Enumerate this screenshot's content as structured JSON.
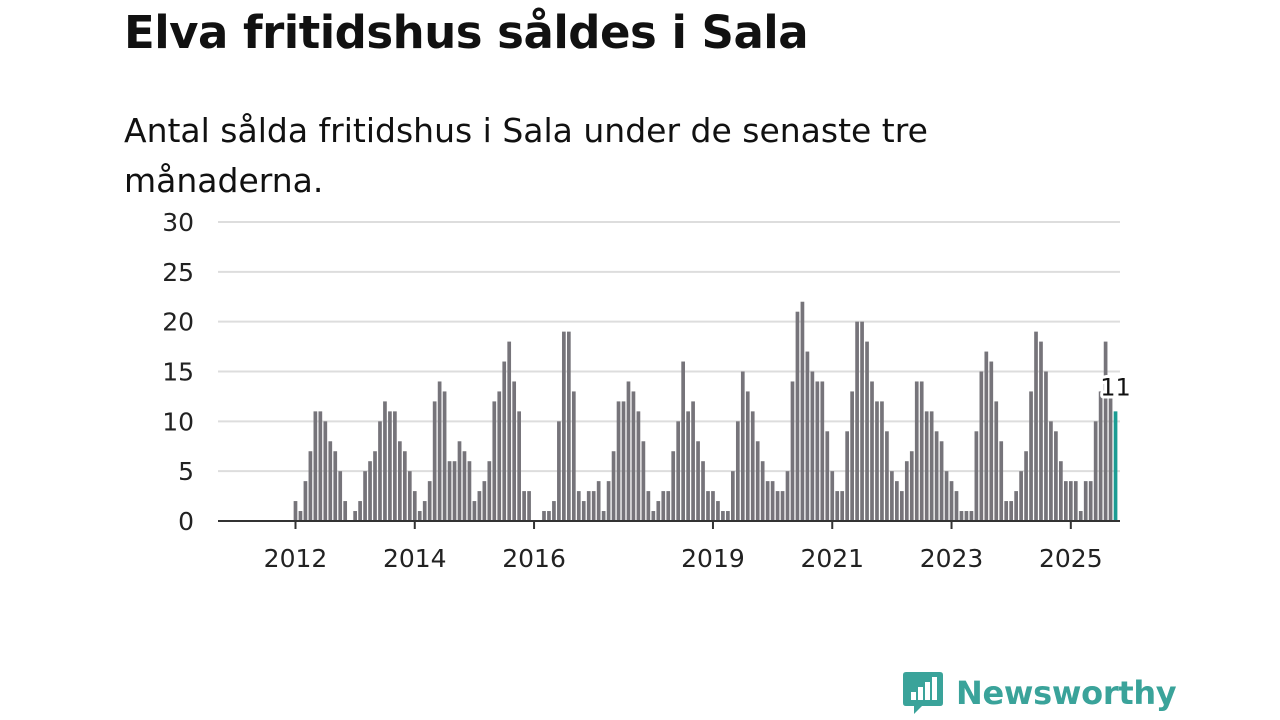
{
  "title": "Elva fritidshus såldes i Sala",
  "subtitle": "Antal sålda fritidshus i Sala under de senaste tre månaderna.",
  "brand": {
    "name": "Newsworthy",
    "icon": "newsworthy-logo-icon"
  },
  "colors": {
    "bar": "#76747a",
    "highlight": "#1b9c93",
    "grid": "#dddddd",
    "axis": "#333333"
  },
  "chart_data": {
    "type": "bar",
    "title": "Elva fritidshus såldes i Sala",
    "subtitle": "Antal sålda fritidshus i Sala under de senaste tre månaderna.",
    "xlabel": "",
    "ylabel": "",
    "ylim": [
      0,
      30
    ],
    "yticks": [
      "0",
      "5",
      "10",
      "15",
      "20",
      "25",
      "30"
    ],
    "grid": true,
    "legend": "none",
    "start": "2011-01",
    "frequency": "monthly",
    "xticks": [
      {
        "month": "2012-01",
        "label": "2012"
      },
      {
        "month": "2014-01",
        "label": "2014"
      },
      {
        "month": "2016-01",
        "label": "2016"
      },
      {
        "month": "2019-01",
        "label": "2019"
      },
      {
        "month": "2021-01",
        "label": "2021"
      },
      {
        "month": "2023-01",
        "label": "2023"
      },
      {
        "month": "2025-01",
        "label": "2025"
      }
    ],
    "values": [
      0,
      0,
      0,
      0,
      0,
      0,
      0,
      0,
      0,
      0,
      0,
      0,
      2,
      1,
      4,
      7,
      11,
      11,
      10,
      8,
      7,
      5,
      2,
      0,
      1,
      2,
      5,
      6,
      7,
      10,
      12,
      11,
      11,
      8,
      7,
      5,
      3,
      1,
      2,
      4,
      12,
      14,
      13,
      6,
      6,
      8,
      7,
      6,
      2,
      3,
      4,
      6,
      12,
      13,
      16,
      18,
      14,
      11,
      3,
      3,
      0,
      0,
      1,
      1,
      2,
      10,
      19,
      19,
      13,
      3,
      2,
      3,
      3,
      4,
      1,
      4,
      7,
      12,
      12,
      14,
      13,
      11,
      8,
      3,
      1,
      2,
      3,
      3,
      7,
      10,
      16,
      11,
      12,
      8,
      6,
      3,
      3,
      2,
      1,
      1,
      5,
      10,
      15,
      13,
      11,
      8,
      6,
      4,
      4,
      3,
      3,
      5,
      14,
      21,
      22,
      17,
      15,
      14,
      14,
      9,
      5,
      3,
      3,
      9,
      13,
      20,
      20,
      18,
      14,
      12,
      12,
      9,
      5,
      4,
      3,
      6,
      7,
      14,
      14,
      11,
      11,
      9,
      8,
      5,
      4,
      3,
      1,
      1,
      1,
      9,
      15,
      17,
      16,
      12,
      8,
      2,
      2,
      3,
      5,
      7,
      13,
      19,
      18,
      15,
      10,
      9,
      6,
      4,
      4,
      4,
      1,
      4,
      4,
      10,
      13,
      18,
      13,
      11
    ],
    "highlight": {
      "month": "2025-10",
      "value": 11,
      "label": "11"
    }
  }
}
